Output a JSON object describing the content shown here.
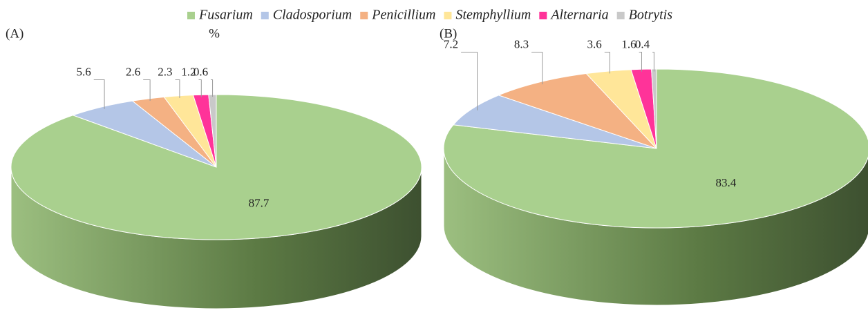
{
  "chart_data": [
    {
      "type": "pie",
      "title": "(A)",
      "subtitle": "%",
      "categories": [
        "Fusarium",
        "Cladosporium",
        "Penicillium",
        "Stemphyllium",
        "Alternaria",
        "Botrytis"
      ],
      "colors": [
        "#a9d08e",
        "#b4c6e7",
        "#f4b183",
        "#ffe699",
        "#ff3399",
        "#c9c9c9"
      ],
      "values": [
        87.7,
        5.6,
        2.6,
        2.3,
        1.2,
        0.6
      ]
    },
    {
      "type": "pie",
      "title": "(B)",
      "values": [
        83.4,
        7.2,
        8.3,
        3.6,
        1.6,
        0.4
      ]
    }
  ]
}
